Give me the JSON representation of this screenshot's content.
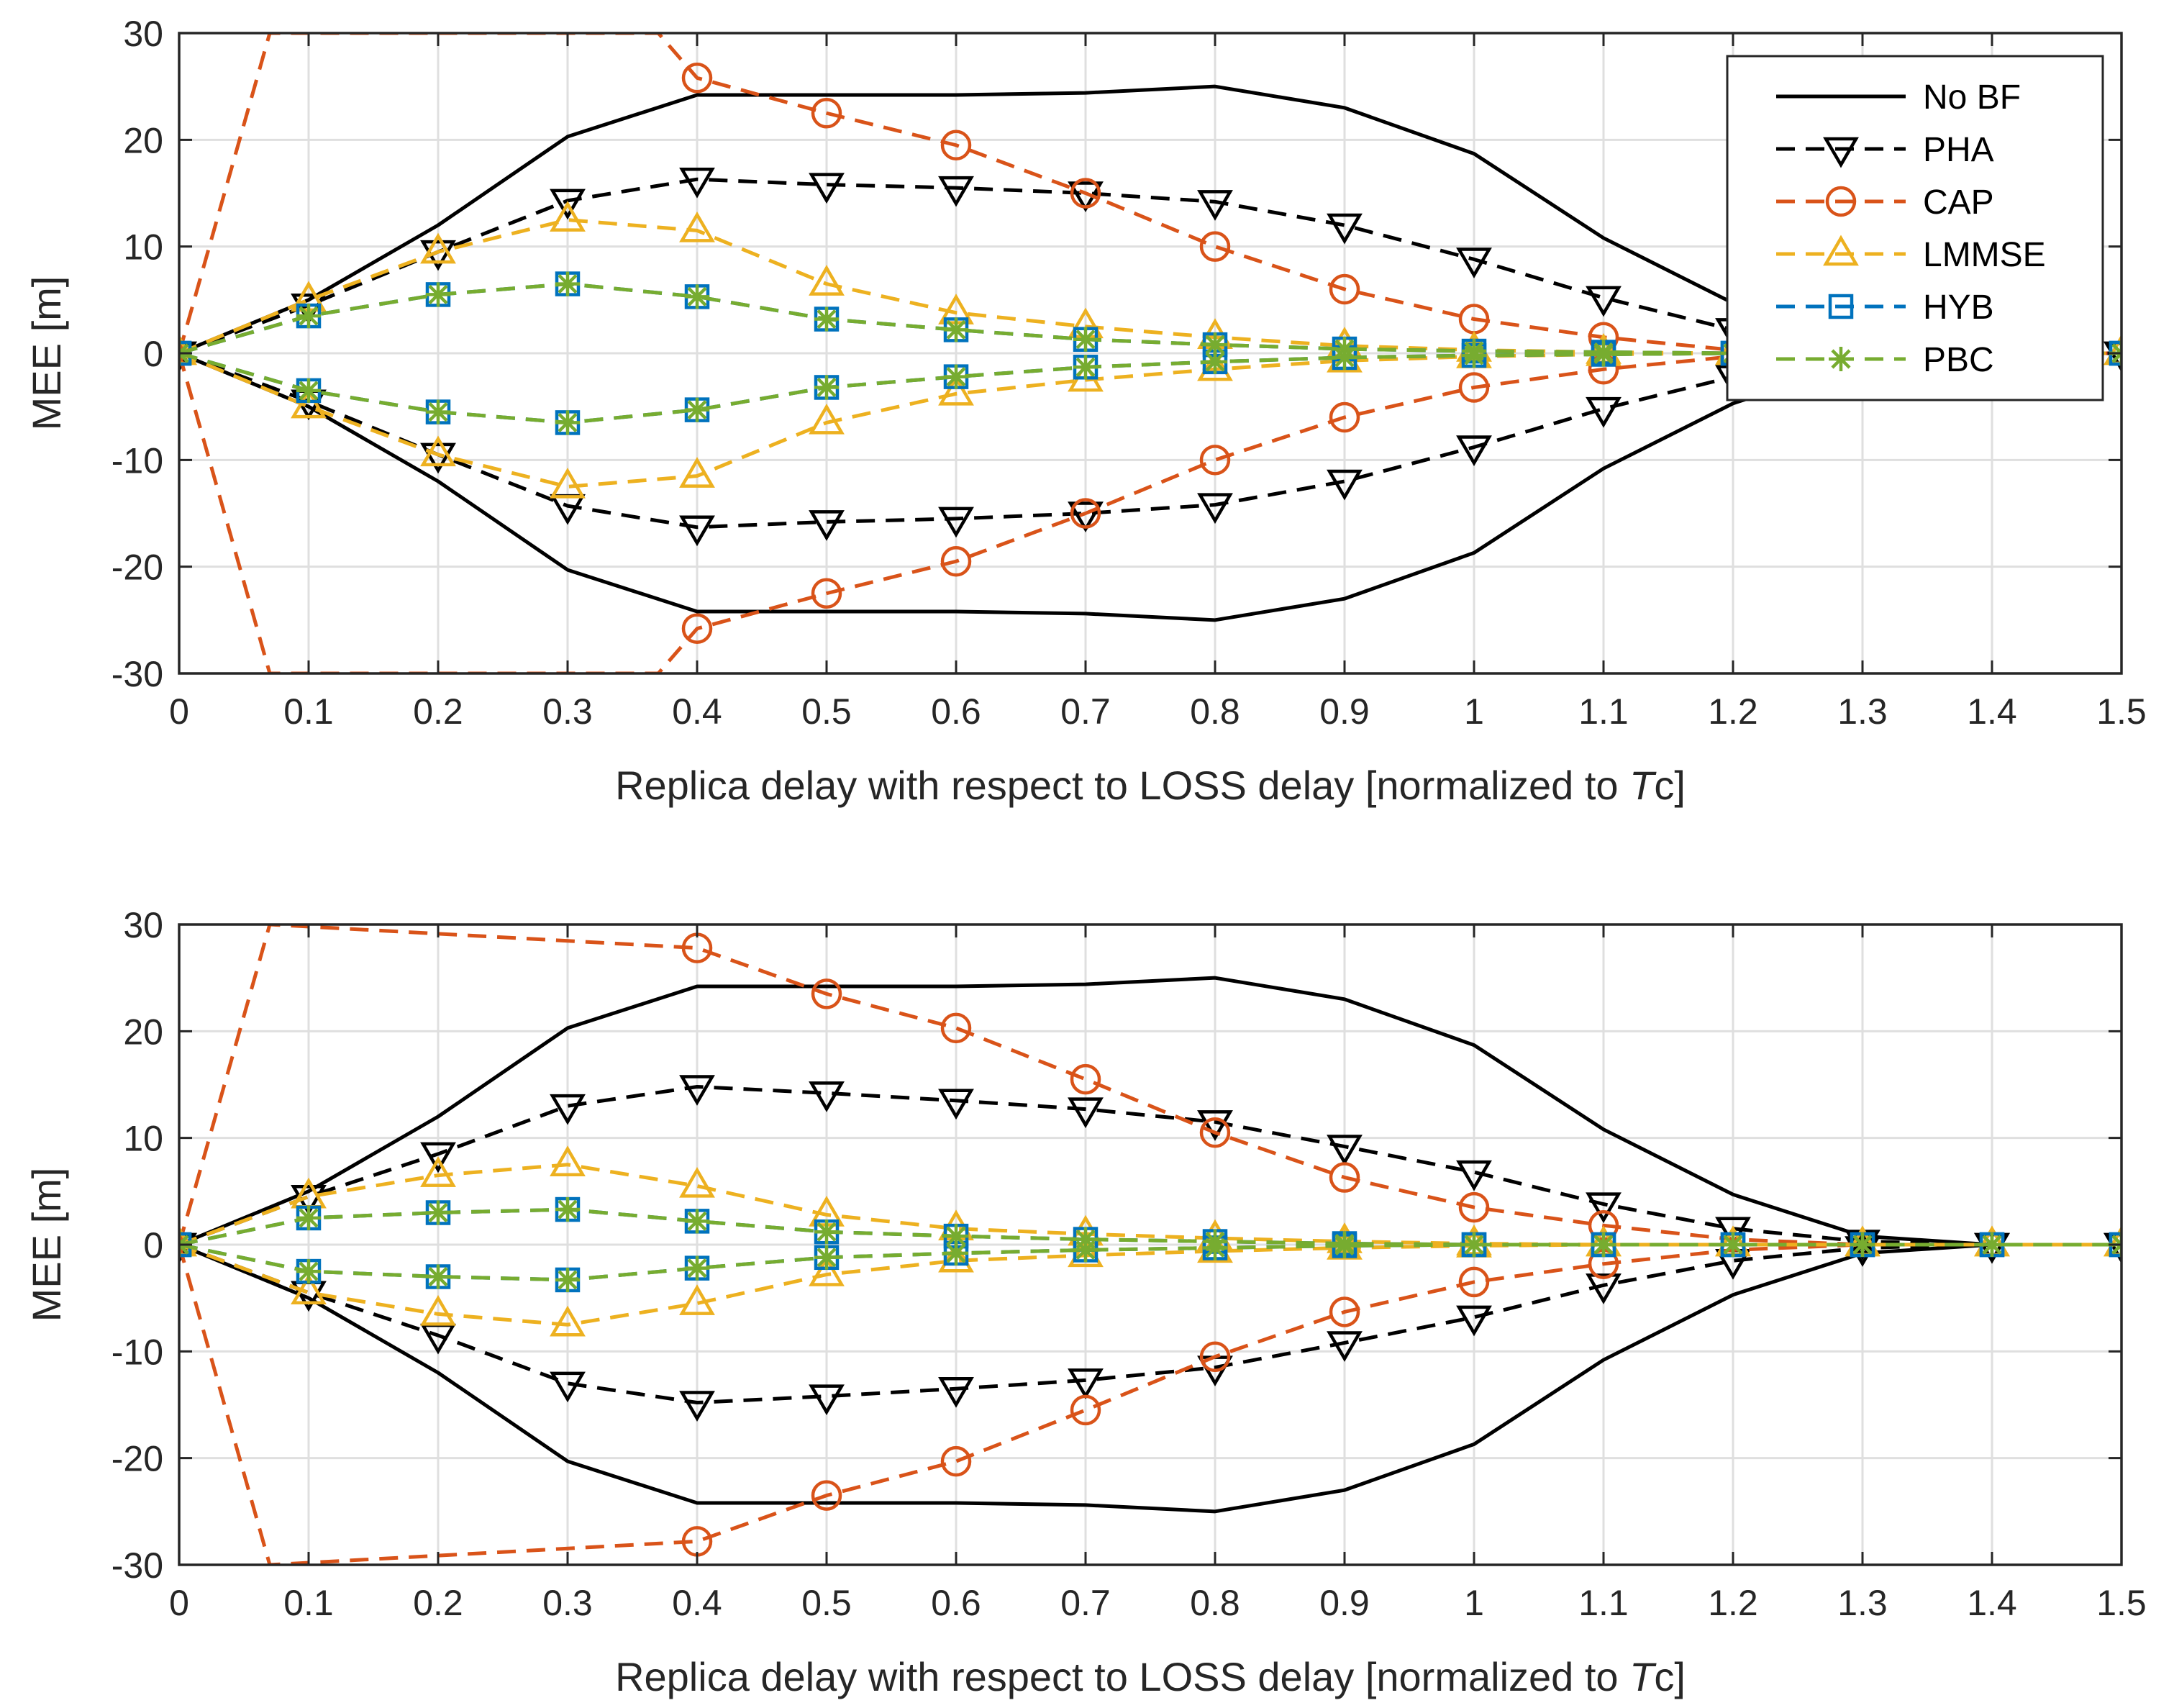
{
  "chart_data": [
    {
      "type": "line",
      "xlabel": "Replica delay with respect to LOSS delay [normalized to Tc]",
      "xlabel_parts": [
        "Replica delay with respect to LOSS delay [normalized to ",
        "T",
        "c]"
      ],
      "ylabel": "MEE [m]",
      "xlim": [
        0,
        1.5
      ],
      "ylim": [
        -30,
        30
      ],
      "xticks": [
        0,
        0.1,
        0.2,
        0.3,
        0.4,
        0.5,
        0.6,
        0.7,
        0.8,
        0.9,
        1,
        1.1,
        1.2,
        1.3,
        1.4,
        1.5
      ],
      "xtick_labels": [
        "0",
        "0.1",
        "0.2",
        "0.3",
        "0.4",
        "0.5",
        "0.6",
        "0.7",
        "0.8",
        "0.9",
        "1",
        "1.1",
        "1.2",
        "1.3",
        "1.4",
        "1.5"
      ],
      "yticks": [
        -30,
        -20,
        -10,
        0,
        10,
        20,
        30
      ],
      "ytick_labels": [
        "-30",
        "-20",
        "-10",
        "0",
        "10",
        "20",
        "30"
      ],
      "grid": true,
      "legend": "top-right",
      "series": [
        {
          "name": "No BF",
          "color": "#000000",
          "dash": "solid",
          "marker": "none",
          "mirrored": true,
          "x": [
            0,
            0.1,
            0.2,
            0.3,
            0.4,
            0.5,
            0.6,
            0.7,
            0.8,
            0.9,
            1,
            1.1,
            1.2,
            1.3,
            1.4,
            1.5
          ],
          "y": [
            0,
            5,
            12,
            20.3,
            24.2,
            24.2,
            24.2,
            24.4,
            25,
            23,
            18.7,
            10.8,
            4.7,
            0.8,
            0,
            0
          ]
        },
        {
          "name": "PHA",
          "color": "#000000",
          "dash": "dashed",
          "marker": "triangle-down",
          "mirrored": true,
          "x": [
            0,
            0.1,
            0.2,
            0.3,
            0.4,
            0.5,
            0.6,
            0.7,
            0.8,
            0.9,
            1,
            1.1,
            1.2,
            1.3,
            1.4,
            1.5
          ],
          "y": [
            0,
            4.5,
            9.5,
            14.3,
            16.3,
            15.8,
            15.5,
            15,
            14.2,
            12,
            8.8,
            5.2,
            2.2,
            0.5,
            0,
            0
          ]
        },
        {
          "name": "CAP",
          "color": "#D95319",
          "dash": "dashed",
          "marker": "circle",
          "mirrored": true,
          "x": [
            0,
            0.07,
            0.37,
            0.4,
            0.5,
            0.6,
            0.7,
            0.8,
            0.9,
            1,
            1.1,
            1.2,
            1.3,
            1.4,
            1.5
          ],
          "y": [
            0,
            30,
            30,
            25.8,
            22.5,
            19.5,
            15,
            10,
            6,
            3.2,
            1.5,
            0.3,
            0,
            0,
            0
          ],
          "marker_points": [
            3,
            4,
            5,
            6,
            7,
            8,
            9,
            10
          ]
        },
        {
          "name": "LMMSE",
          "color": "#EDB120",
          "dash": "dashed",
          "marker": "triangle-up",
          "mirrored": true,
          "x": [
            0,
            0.1,
            0.2,
            0.3,
            0.4,
            0.5,
            0.6,
            0.7,
            0.8,
            0.9,
            1,
            1.1,
            1.2,
            1.3,
            1.4,
            1.5
          ],
          "y": [
            0,
            5,
            9.5,
            12.5,
            11.5,
            6.5,
            3.8,
            2.5,
            1.5,
            0.7,
            0.3,
            0.1,
            0,
            0,
            0,
            0
          ]
        },
        {
          "name": "HYB",
          "color": "#0072BD",
          "dash": "dashed",
          "marker": "square",
          "mirrored": true,
          "x": [
            0,
            0.1,
            0.2,
            0.3,
            0.4,
            0.5,
            0.6,
            0.7,
            0.8,
            0.9,
            1,
            1.1,
            1.2,
            1.3,
            1.4,
            1.5
          ],
          "y": [
            0,
            3.5,
            5.5,
            6.5,
            5.3,
            3.2,
            2.2,
            1.3,
            0.8,
            0.4,
            0.2,
            0.1,
            0,
            0,
            0,
            0
          ]
        },
        {
          "name": "PBC",
          "color": "#77AC30",
          "dash": "dashed",
          "marker": "asterisk",
          "mirrored": true,
          "x": [
            0,
            0.1,
            0.2,
            0.3,
            0.4,
            0.5,
            0.6,
            0.7,
            0.8,
            0.9,
            1,
            1.1,
            1.2,
            1.3,
            1.4,
            1.5
          ],
          "y": [
            0,
            3.5,
            5.5,
            6.5,
            5.3,
            3.2,
            2.2,
            1.3,
            0.8,
            0.4,
            0.2,
            0.1,
            0,
            0,
            0,
            0
          ]
        }
      ]
    },
    {
      "type": "line",
      "xlabel": "Replica delay with respect to LOSS delay [normalized to Tc]",
      "xlabel_parts": [
        "Replica delay with respect to LOSS delay [normalized to ",
        "T",
        "c]"
      ],
      "ylabel": "MEE [m]",
      "xlim": [
        0,
        1.5
      ],
      "ylim": [
        -30,
        30
      ],
      "xticks": [
        0,
        0.1,
        0.2,
        0.3,
        0.4,
        0.5,
        0.6,
        0.7,
        0.8,
        0.9,
        1,
        1.1,
        1.2,
        1.3,
        1.4,
        1.5
      ],
      "xtick_labels": [
        "0",
        "0.1",
        "0.2",
        "0.3",
        "0.4",
        "0.5",
        "0.6",
        "0.7",
        "0.8",
        "0.9",
        "1",
        "1.1",
        "1.2",
        "1.3",
        "1.4",
        "1.5"
      ],
      "yticks": [
        -30,
        -20,
        -10,
        0,
        10,
        20,
        30
      ],
      "ytick_labels": [
        "-30",
        "-20",
        "-10",
        "0",
        "10",
        "20",
        "30"
      ],
      "grid": true,
      "series": [
        {
          "name": "No BF",
          "color": "#000000",
          "dash": "solid",
          "marker": "none",
          "mirrored": true,
          "x": [
            0,
            0.1,
            0.2,
            0.3,
            0.4,
            0.5,
            0.6,
            0.7,
            0.8,
            0.9,
            1,
            1.1,
            1.2,
            1.3,
            1.4,
            1.5
          ],
          "y": [
            0,
            5,
            12,
            20.3,
            24.2,
            24.2,
            24.2,
            24.4,
            25,
            23,
            18.7,
            10.8,
            4.7,
            0.8,
            0,
            0
          ]
        },
        {
          "name": "PHA",
          "color": "#000000",
          "dash": "dashed",
          "marker": "triangle-down",
          "mirrored": true,
          "x": [
            0,
            0.1,
            0.2,
            0.3,
            0.4,
            0.5,
            0.6,
            0.7,
            0.8,
            0.9,
            1,
            1.1,
            1.2,
            1.3,
            1.4,
            1.5
          ],
          "y": [
            0,
            4.5,
            8.5,
            13,
            14.8,
            14.2,
            13.5,
            12.7,
            11.5,
            9.2,
            6.8,
            3.8,
            1.5,
            0.3,
            0,
            0
          ]
        },
        {
          "name": "CAP",
          "color": "#D95319",
          "dash": "dashed",
          "marker": "circle",
          "mirrored": true,
          "x": [
            0,
            0.07,
            0.4,
            0.5,
            0.6,
            0.7,
            0.8,
            0.9,
            1,
            1.1,
            1.2,
            1.3,
            1.4,
            1.5
          ],
          "y": [
            0,
            30,
            27.8,
            23.5,
            20.3,
            15.5,
            10.5,
            6.3,
            3.5,
            1.8,
            0.5,
            0,
            0,
            0
          ],
          "marker_points": [
            2,
            3,
            4,
            5,
            6,
            7,
            8,
            9
          ]
        },
        {
          "name": "LMMSE",
          "color": "#EDB120",
          "dash": "dashed",
          "marker": "triangle-up",
          "mirrored": true,
          "x": [
            0,
            0.1,
            0.2,
            0.3,
            0.4,
            0.5,
            0.6,
            0.7,
            0.8,
            0.9,
            1,
            1.1,
            1.2,
            1.3,
            1.4,
            1.5
          ],
          "y": [
            0,
            4.5,
            6.5,
            7.5,
            5.5,
            2.8,
            1.5,
            1,
            0.6,
            0.3,
            0.1,
            0,
            0,
            0,
            0,
            0
          ]
        },
        {
          "name": "HYB",
          "color": "#0072BD",
          "dash": "dashed",
          "marker": "square",
          "mirrored": true,
          "x": [
            0,
            0.1,
            0.2,
            0.3,
            0.4,
            0.5,
            0.6,
            0.7,
            0.8,
            0.9,
            1,
            1.1,
            1.2,
            1.3,
            1.4,
            1.5
          ],
          "y": [
            0,
            2.5,
            3,
            3.3,
            2.2,
            1.2,
            0.8,
            0.5,
            0.3,
            0.1,
            0,
            0,
            0,
            0,
            0,
            0
          ]
        },
        {
          "name": "PBC",
          "color": "#77AC30",
          "dash": "dashed",
          "marker": "asterisk",
          "mirrored": true,
          "x": [
            0,
            0.1,
            0.2,
            0.3,
            0.4,
            0.5,
            0.6,
            0.7,
            0.8,
            0.9,
            1,
            1.1,
            1.2,
            1.3,
            1.4,
            1.5
          ],
          "y": [
            0,
            2.5,
            3,
            3.3,
            2.2,
            1.2,
            0.8,
            0.5,
            0.3,
            0.1,
            0,
            0,
            0,
            0,
            0,
            0
          ]
        }
      ]
    }
  ]
}
